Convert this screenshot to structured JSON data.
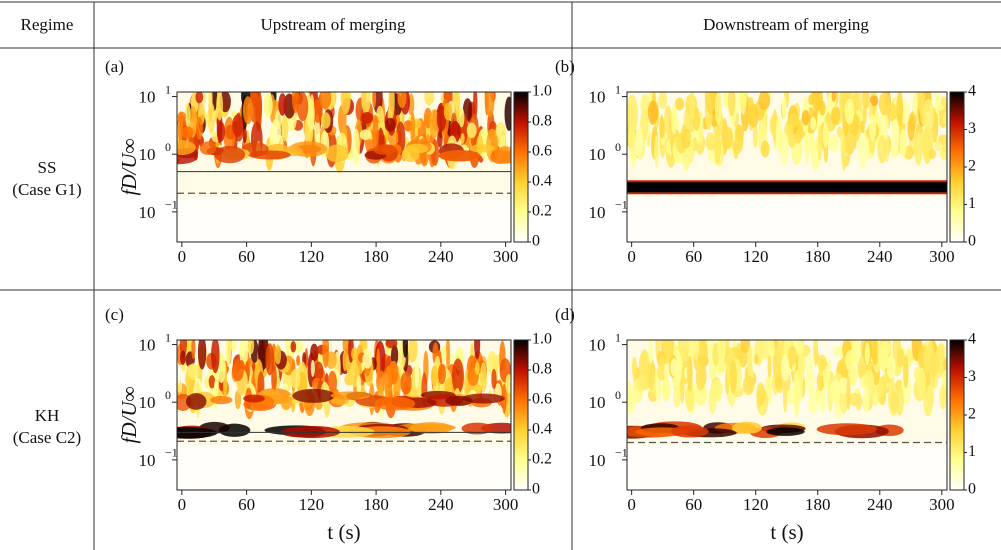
{
  "header": {
    "regime": "Regime",
    "upstream": "Upstream of merging",
    "downstream": "Downstream of merging"
  },
  "rows": [
    {
      "regime": "SS",
      "case": "(Case G1)"
    },
    {
      "regime": "KH",
      "case": "(Case C2)"
    }
  ],
  "panels": [
    {
      "label": "(a)",
      "ylabel": "fD/U∞",
      "xlim": [
        -4.5,
        305
      ],
      "xticks": [
        0,
        60,
        120,
        180,
        240,
        300
      ],
      "ylim": [
        0.03,
        12
      ],
      "yscale": "log",
      "yticks": [
        {
          "value": 0.1,
          "label": "10",
          "exponent": "−1"
        },
        {
          "value": 1,
          "label": "10",
          "exponent": "0"
        },
        {
          "value": 10,
          "label": "10",
          "exponent": "1"
        }
      ],
      "colorbar": {
        "lim": [
          0,
          1
        ],
        "ticks": [
          0,
          0.2,
          0.4,
          0.6,
          0.8,
          {
            "value": 1,
            "label": "1.0"
          }
        ]
      },
      "solid_line": 0.5,
      "dashed_line": 0.21
    },
    {
      "label": "(b)",
      "xlim": [
        -4.5,
        305
      ],
      "xticks": [
        0,
        60,
        120,
        180,
        240,
        300
      ],
      "ylim": [
        0.03,
        12
      ],
      "yscale": "log",
      "yticks": [
        {
          "value": 0.1,
          "label": "10",
          "exponent": "−1"
        },
        {
          "value": 1,
          "label": "10",
          "exponent": "0"
        },
        {
          "value": 10,
          "label": "10",
          "exponent": "1"
        }
      ],
      "colorbar": {
        "lim": [
          0,
          4
        ],
        "ticks": [
          0,
          1,
          2,
          3,
          4
        ]
      },
      "dashed_line": 0.21
    },
    {
      "label": "(c)",
      "ylabel": "fD/U∞",
      "xlabel": "t (s)",
      "xlim": [
        -4.5,
        305
      ],
      "xticks": [
        0,
        60,
        120,
        180,
        240,
        300
      ],
      "ylim": [
        0.03,
        12
      ],
      "yscale": "log",
      "yticks": [
        {
          "value": 0.1,
          "label": "10",
          "exponent": "−1"
        },
        {
          "value": 1,
          "label": "10",
          "exponent": "0"
        },
        {
          "value": 10,
          "label": "10",
          "exponent": "1"
        }
      ],
      "colorbar": {
        "lim": [
          0,
          1
        ],
        "ticks": [
          0,
          0.2,
          0.4,
          0.6,
          0.8,
          {
            "value": 1,
            "label": "1.0"
          }
        ]
      },
      "solid_line": 0.3,
      "dashed_line": 0.21
    },
    {
      "label": "(d)",
      "xlabel": "t (s)",
      "xlim": [
        -4.5,
        305
      ],
      "xticks": [
        0,
        60,
        120,
        180,
        240,
        300
      ],
      "ylim": [
        0.03,
        12
      ],
      "yscale": "log",
      "yticks": [
        {
          "value": 0.1,
          "label": "10",
          "exponent": "−1"
        },
        {
          "value": 1,
          "label": "10",
          "exponent": "0"
        },
        {
          "value": 10,
          "label": "10",
          "exponent": "1"
        }
      ],
      "colorbar": {
        "lim": [
          0,
          4
        ],
        "ticks": [
          0,
          1,
          2,
          3,
          4
        ]
      },
      "dashed_line": 0.2
    }
  ]
}
